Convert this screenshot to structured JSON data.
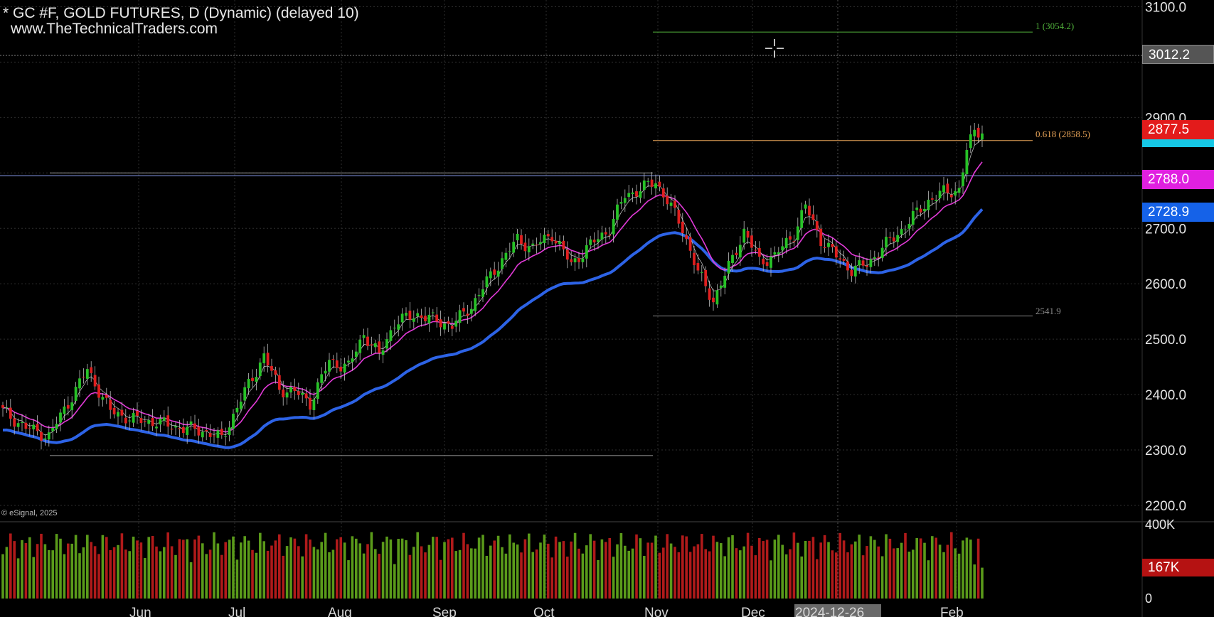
{
  "header": {
    "title": "* GC #F, GOLD FUTURES, D (Dynamic) (delayed 10)",
    "site": "www.TheTechnicalTraders.com"
  },
  "copyright": "© eSignal, 2025",
  "fib_labels": {
    "level_1": "1 (3054.2)",
    "level_0618": "0.618 (2858.5)",
    "low": "2541.9"
  },
  "price_badges": {
    "last_price": "2877.5",
    "price_3012": "3012.2",
    "ma_magenta": "2788.0",
    "ma_blue": "2728.9",
    "volume": "167K"
  },
  "colors": {
    "background": "#000000",
    "up_candle": "#27c227",
    "down_candle": "#e01f1f",
    "ma_magenta": "#e23ad8",
    "ma_blue": "#2d63e6",
    "fib_green": "#4fae3a",
    "fib_orange": "#e8a458",
    "fib_gray": "#8a8a8a",
    "resistance_line": "#7a8ed8",
    "badge_red": "#e31b1b",
    "badge_cyan": "#16c8e6",
    "badge_magenta": "#e020e0",
    "badge_blue": "#1562e8",
    "badge_gray": "#555555",
    "volume_green": "#5a9a1a",
    "volume_red": "#b01a1a",
    "badge_volume_red": "#b51212"
  },
  "chart_data": {
    "type": "candlestick",
    "y_axis": {
      "ticks": [
        "2200.0",
        "2300.0",
        "2400.0",
        "2500.0",
        "2600.0",
        "2700.0",
        "2900.0",
        "3100.0"
      ],
      "range": [
        2165,
        3110
      ]
    },
    "x_axis": {
      "labels": [
        "Jun",
        "Jul",
        "Aug",
        "Sep",
        "Oct",
        "Nov",
        "Dec",
        "2024-12-26",
        "Feb"
      ],
      "highlighted_label": "2024-12-26"
    },
    "volume_axis": {
      "ticks": [
        "0",
        "400K"
      ],
      "range": [
        0,
        400000
      ]
    },
    "fib_levels": [
      {
        "label": "1",
        "value": 3054.2
      },
      {
        "label": "0.618",
        "value": 2858.5
      },
      {
        "label": "",
        "value": 2541.9
      }
    ],
    "horizontal_lines": [
      2795,
      2290,
      3012.2
    ],
    "last_volume": 167000,
    "series": [
      {
        "name": "",
        "kind": "close_approx",
        "color": "ma_magenta"
      },
      {
        "name": "",
        "kind": "ma",
        "color": "ma_blue"
      }
    ],
    "anchors": [
      [
        0,
        2370
      ],
      [
        6,
        2340
      ],
      [
        12,
        2325
      ],
      [
        22,
        2445
      ],
      [
        28,
        2370
      ],
      [
        34,
        2355
      ],
      [
        40,
        2350
      ],
      [
        46,
        2340
      ],
      [
        52,
        2335
      ],
      [
        57,
        2320
      ],
      [
        63,
        2405
      ],
      [
        68,
        2470
      ],
      [
        72,
        2410
      ],
      [
        76,
        2405
      ],
      [
        80,
        2385
      ],
      [
        85,
        2460
      ],
      [
        90,
        2450
      ],
      [
        94,
        2510
      ],
      [
        98,
        2470
      ],
      [
        102,
        2530
      ],
      [
        108,
        2545
      ],
      [
        112,
        2535
      ],
      [
        117,
        2525
      ],
      [
        122,
        2560
      ],
      [
        128,
        2625
      ],
      [
        134,
        2680
      ],
      [
        138,
        2665
      ],
      [
        143,
        2690
      ],
      [
        148,
        2635
      ],
      [
        153,
        2670
      ],
      [
        158,
        2700
      ],
      [
        162,
        2760
      ],
      [
        166,
        2770
      ],
      [
        170,
        2785
      ],
      [
        173,
        2750
      ],
      [
        177,
        2700
      ],
      [
        181,
        2620
      ],
      [
        185,
        2570
      ],
      [
        189,
        2630
      ],
      [
        193,
        2695
      ],
      [
        197,
        2640
      ],
      [
        201,
        2650
      ],
      [
        206,
        2690
      ],
      [
        209,
        2740
      ],
      [
        213,
        2680
      ],
      [
        217,
        2650
      ],
      [
        221,
        2625
      ],
      [
        225,
        2635
      ],
      [
        229,
        2665
      ],
      [
        233,
        2690
      ],
      [
        237,
        2720
      ],
      [
        241,
        2750
      ],
      [
        245,
        2765
      ],
      [
        249,
        2770
      ],
      [
        251,
        2840
      ],
      [
        253,
        2875
      ],
      [
        255,
        2877.5
      ]
    ]
  }
}
